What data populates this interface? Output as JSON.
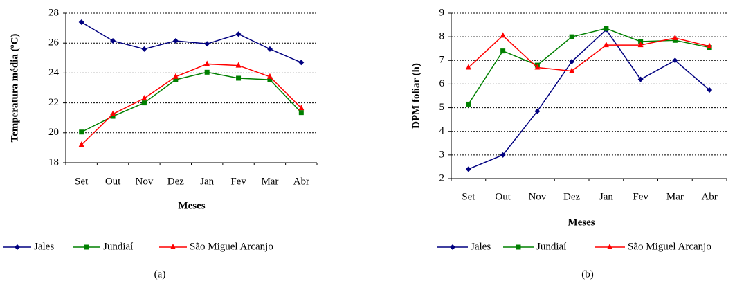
{
  "chart_data": [
    {
      "type": "line",
      "y_label": "Temperatura média (ºC)",
      "x_label": "Meses",
      "caption": "(a)",
      "categories": [
        "Set",
        "Out",
        "Nov",
        "Dez",
        "Jan",
        "Fev",
        "Mar",
        "Abr"
      ],
      "ylim": [
        18,
        28
      ],
      "yticks": [
        18,
        20,
        22,
        24,
        26,
        28
      ],
      "grid": true,
      "series": [
        {
          "name": "Jales",
          "color": "#000080",
          "marker": "diamond",
          "values": [
            27.4,
            26.15,
            25.6,
            26.15,
            25.95,
            26.6,
            25.6,
            24.7
          ]
        },
        {
          "name": "Jundiaí",
          "color": "#008000",
          "marker": "square",
          "values": [
            20.05,
            21.1,
            22.0,
            23.55,
            24.05,
            23.65,
            23.55,
            21.35
          ]
        },
        {
          "name": "São Miguel Arcanjo",
          "color": "#ff0000",
          "marker": "triangle",
          "values": [
            19.2,
            21.25,
            22.3,
            23.75,
            24.6,
            24.5,
            23.75,
            21.65
          ]
        }
      ]
    },
    {
      "type": "line",
      "y_label": "DPM foliar  (h)",
      "x_label": "Meses",
      "caption": "(b)",
      "categories": [
        "Set",
        "Out",
        "Nov",
        "Dez",
        "Jan",
        "Fev",
        "Mar",
        "Abr"
      ],
      "ylim": [
        2,
        9
      ],
      "yticks": [
        2,
        3,
        4,
        5,
        6,
        7,
        8,
        9
      ],
      "grid": true,
      "series": [
        {
          "name": "Jales",
          "color": "#000080",
          "marker": "diamond",
          "values": [
            2.4,
            3.0,
            4.85,
            6.95,
            8.3,
            6.2,
            7.0,
            5.75
          ]
        },
        {
          "name": "Jundiaí",
          "color": "#008000",
          "marker": "square",
          "values": [
            5.15,
            7.4,
            6.8,
            8.0,
            8.35,
            7.8,
            7.85,
            7.55
          ]
        },
        {
          "name": "São Miguel Arcanjo",
          "color": "#ff0000",
          "marker": "triangle",
          "values": [
            6.7,
            8.05,
            6.7,
            6.55,
            7.65,
            7.65,
            7.95,
            7.6
          ]
        }
      ]
    }
  ]
}
